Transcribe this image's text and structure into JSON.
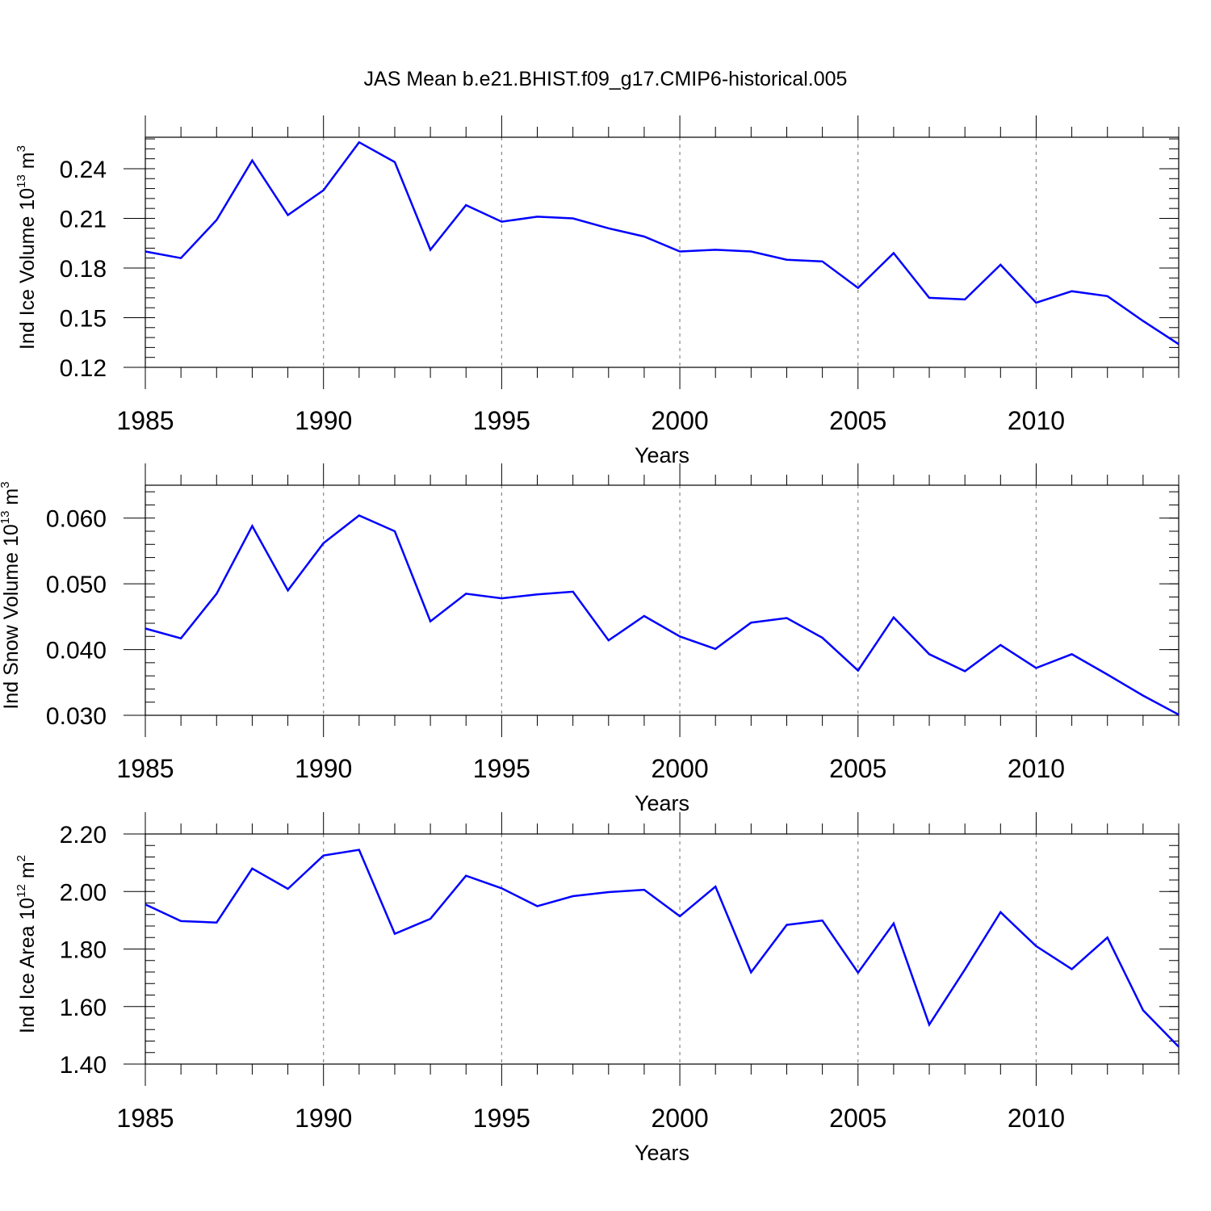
{
  "title": "JAS Mean b.e21.BHIST.f09_g17.CMIP6-historical.005",
  "series_color": "#0000ff",
  "chart_data": [
    {
      "type": "line",
      "ylabel": "Ind Ice Volume 10",
      "ylabel_exp": "13",
      "ylabel_unit": " m",
      "ylabel_unit_exp": "3",
      "xlabel": "Years",
      "xlim": [
        1985,
        2014
      ],
      "ylim": [
        0.12,
        0.259
      ],
      "x_ticks": [
        1985,
        1990,
        1995,
        2000,
        2005,
        2010
      ],
      "y_ticks": [
        0.12,
        0.15,
        0.18,
        0.21,
        0.24
      ],
      "y_tick_labels": [
        "0.12",
        "0.15",
        "0.18",
        "0.21",
        "0.24"
      ],
      "y_minor_step": 0.006,
      "x": [
        1985,
        1986,
        1987,
        1988,
        1989,
        1990,
        1991,
        1992,
        1993,
        1994,
        1995,
        1996,
        1997,
        1998,
        1999,
        2000,
        2001,
        2002,
        2003,
        2004,
        2005,
        2006,
        2007,
        2008,
        2009,
        2010,
        2011,
        2012,
        2013,
        2014
      ],
      "values": [
        0.19,
        0.186,
        0.209,
        0.245,
        0.212,
        0.227,
        0.256,
        0.244,
        0.191,
        0.218,
        0.208,
        0.211,
        0.21,
        0.204,
        0.199,
        0.19,
        0.191,
        0.19,
        0.185,
        0.184,
        0.168,
        0.189,
        0.162,
        0.161,
        0.182,
        0.159,
        0.166,
        0.163,
        0.148,
        0.134
      ]
    },
    {
      "type": "line",
      "ylabel": "Ind Snow Volume 10",
      "ylabel_exp": "13",
      "ylabel_unit": " m",
      "ylabel_unit_exp": "3",
      "xlabel": "Years",
      "xlim": [
        1985,
        2014
      ],
      "ylim": [
        0.03,
        0.065
      ],
      "x_ticks": [
        1985,
        1990,
        1995,
        2000,
        2005,
        2010
      ],
      "y_ticks": [
        0.03,
        0.04,
        0.05,
        0.06
      ],
      "y_tick_labels": [
        "0.030",
        "0.040",
        "0.050",
        "0.060"
      ],
      "y_minor_step": 0.002,
      "x": [
        1985,
        1986,
        1987,
        1988,
        1989,
        1990,
        1991,
        1992,
        1993,
        1994,
        1995,
        1996,
        1997,
        1998,
        1999,
        2000,
        2001,
        2002,
        2003,
        2004,
        2005,
        2006,
        2007,
        2008,
        2009,
        2010,
        2011,
        2012,
        2013,
        2014
      ],
      "values": [
        0.0432,
        0.0417,
        0.0485,
        0.0588,
        0.049,
        0.0562,
        0.0604,
        0.058,
        0.0443,
        0.0485,
        0.0478,
        0.0484,
        0.0488,
        0.0414,
        0.0451,
        0.042,
        0.0401,
        0.0441,
        0.0448,
        0.0418,
        0.0368,
        0.0449,
        0.0393,
        0.0367,
        0.0407,
        0.0372,
        0.0393,
        0.0362,
        0.033,
        0.0301
      ]
    },
    {
      "type": "line",
      "ylabel": "Ind Ice Area 10",
      "ylabel_exp": "12",
      "ylabel_unit": " m",
      "ylabel_unit_exp": "2",
      "xlabel": "Years",
      "xlim": [
        1985,
        2014
      ],
      "ylim": [
        1.4,
        2.2
      ],
      "x_ticks": [
        1985,
        1990,
        1995,
        2000,
        2005,
        2010
      ],
      "y_ticks": [
        1.4,
        1.6,
        1.8,
        2.0,
        2.2
      ],
      "y_tick_labels": [
        "1.40",
        "1.60",
        "1.80",
        "2.00",
        "2.20"
      ],
      "y_minor_step": 0.04,
      "x": [
        1985,
        1986,
        1987,
        1988,
        1989,
        1990,
        1991,
        1992,
        1993,
        1994,
        1995,
        1996,
        1997,
        1998,
        1999,
        2000,
        2001,
        2002,
        2003,
        2004,
        2005,
        2006,
        2007,
        2008,
        2009,
        2010,
        2011,
        2012,
        2013,
        2014
      ],
      "values": [
        1.955,
        1.897,
        1.892,
        2.08,
        2.009,
        2.125,
        2.145,
        1.853,
        1.905,
        2.055,
        2.011,
        1.949,
        1.984,
        1.998,
        2.006,
        1.914,
        2.017,
        1.719,
        1.884,
        1.899,
        1.718,
        1.889,
        1.537,
        1.729,
        1.928,
        1.81,
        1.73,
        1.84,
        1.587,
        1.46
      ]
    }
  ]
}
